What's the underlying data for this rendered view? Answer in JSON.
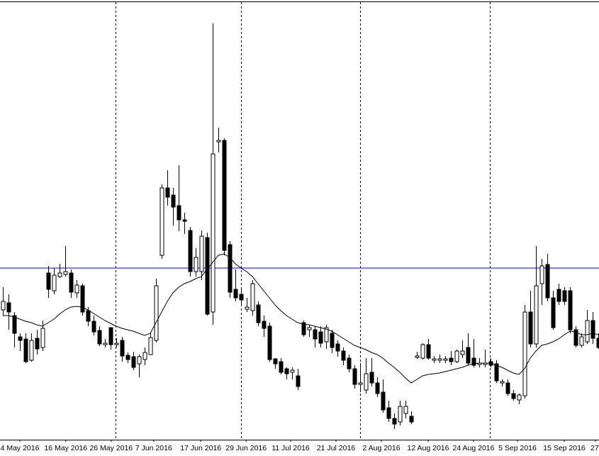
{
  "chart_data": {
    "type": "candlestick",
    "open": [
      183,
      193,
      175,
      145,
      142,
      112,
      143,
      130,
      235,
      210,
      230,
      233,
      235,
      207,
      217,
      182,
      167,
      154,
      134,
      158,
      134,
      140,
      119,
      117,
      107,
      113,
      120,
      140,
      260,
      355,
      345,
      330,
      310,
      295,
      237,
      237,
      285,
      180,
      420,
      422,
      275,
      212,
      205,
      184,
      182,
      190,
      167,
      160,
      114,
      110,
      100,
      95,
      90,
      165,
      155,
      155,
      152,
      138,
      150,
      135,
      125,
      115,
      100,
      78,
      70,
      95,
      80,
      67,
      45,
      30,
      25,
      37,
      33,
      116,
      115,
      134,
      112,
      112,
      112,
      115,
      110,
      120,
      130,
      115,
      106,
      106,
      110,
      107,
      80,
      80,
      65,
      56,
      62,
      180,
      135,
      220,
      247,
      200,
      212,
      210,
      210,
      155,
      133,
      138,
      168,
      143
    ],
    "high": [
      215,
      205,
      180,
      150,
      150,
      150,
      155,
      168,
      245,
      242,
      248,
      273,
      240,
      225,
      220,
      187,
      175,
      160,
      142,
      158,
      143,
      145,
      123,
      124,
      120,
      130,
      152,
      227,
      360,
      380,
      355,
      387,
      320,
      300,
      270,
      295,
      292,
      587,
      440,
      425,
      280,
      240,
      215,
      200,
      225,
      195,
      175,
      165,
      115,
      115,
      102,
      102,
      100,
      168,
      162,
      160,
      160,
      162,
      155,
      140,
      130,
      120,
      105,
      108,
      115,
      115,
      88,
      85,
      55,
      37,
      55,
      55,
      40,
      124,
      136,
      142,
      118,
      120,
      118,
      125,
      127,
      140,
      150,
      142,
      115,
      127,
      115,
      112,
      85,
      85,
      70,
      65,
      190,
      210,
      273,
      255,
      262,
      210,
      220,
      215,
      215,
      160,
      150,
      183,
      180,
      150
    ],
    "low": [
      175,
      155,
      130,
      125,
      108,
      110,
      120,
      125,
      200,
      205,
      228,
      230,
      200,
      200,
      175,
      160,
      147,
      132,
      130,
      127,
      130,
      110,
      108,
      98,
      88,
      105,
      120,
      137,
      255,
      330,
      302,
      294,
      290,
      230,
      230,
      225,
      175,
      162,
      405,
      260,
      200,
      195,
      190,
      180,
      175,
      160,
      145,
      110,
      100,
      92,
      85,
      85,
      70,
      145,
      145,
      130,
      130,
      128,
      122,
      117,
      105,
      95,
      72,
      67,
      65,
      75,
      60,
      38,
      25,
      15,
      20,
      30,
      22,
      114,
      113,
      113,
      108,
      108,
      108,
      105,
      108,
      115,
      105,
      102,
      102,
      102,
      102,
      80,
      75,
      62,
      55,
      50,
      58,
      130,
      130,
      190,
      195,
      155,
      190,
      190,
      150,
      130,
      130,
      135,
      135,
      128
    ],
    "close": [
      195,
      180,
      150,
      140,
      110,
      140,
      128,
      157,
      212,
      232,
      235,
      237,
      208,
      218,
      180,
      167,
      152,
      135,
      136,
      134,
      136,
      118,
      113,
      102,
      117,
      123,
      144,
      217,
      355,
      342,
      328,
      310,
      308,
      237,
      257,
      287,
      177,
      403,
      422,
      267,
      208,
      200,
      197,
      187,
      220,
      165,
      157,
      113,
      107,
      95,
      93,
      98,
      75,
      148,
      158,
      142,
      136,
      158,
      130,
      125,
      112,
      100,
      78,
      80,
      93,
      80,
      65,
      42,
      30,
      22,
      47,
      47,
      25,
      118,
      134,
      115,
      114,
      114,
      114,
      110,
      125,
      125,
      108,
      105,
      108,
      108,
      105,
      83,
      82,
      65,
      58,
      63,
      180,
      135,
      217,
      245,
      200,
      158,
      195,
      195,
      155,
      133,
      145,
      168,
      143,
      130
    ],
    "ma": [
      175,
      175,
      173,
      170,
      167,
      165,
      162,
      160,
      165,
      170,
      177,
      183,
      187,
      188,
      187,
      183,
      178,
      173,
      168,
      164,
      160,
      157,
      155,
      153,
      150,
      147,
      150,
      165,
      180,
      195,
      207,
      215,
      220,
      223,
      227,
      230,
      240,
      250,
      260,
      262,
      257,
      248,
      242,
      237,
      230,
      220,
      210,
      200,
      190,
      182,
      175,
      170,
      165,
      163,
      162,
      160,
      158,
      156,
      153,
      148,
      143,
      138,
      133,
      130,
      127,
      123,
      120,
      115,
      108,
      102,
      95,
      87,
      80,
      85,
      90,
      92,
      93,
      94,
      96,
      98,
      100,
      102,
      105,
      107,
      108,
      108,
      108,
      105,
      102,
      98,
      94,
      92,
      100,
      115,
      125,
      133,
      135,
      138,
      142,
      148,
      153,
      152,
      148,
      148,
      150,
      148
    ],
    "up_color": "#ffffff",
    "down_color": "#000000",
    "ma_color": "#000000",
    "hline": 242,
    "hline_color": "#0000cc",
    "ylim": [
      0,
      618
    ],
    "xlim": [
      -0.5,
      105.125
    ],
    "xticks": [
      {
        "value": 3,
        "label": "4 May 2016"
      },
      {
        "value": 11.1,
        "label": "16 May 2016"
      },
      {
        "value": 19.1,
        "label": "26 May 2016"
      },
      {
        "value": 26.6,
        "label": "7 Jun 2016"
      },
      {
        "value": 34.9,
        "label": "17 Jun 2016"
      },
      {
        "value": 42.9,
        "label": "29 Jun 2016"
      },
      {
        "value": 50.75,
        "label": "11 Jul 2016"
      },
      {
        "value": 58.75,
        "label": "21 Jul 2016"
      },
      {
        "value": 66.75,
        "label": "2 Aug 2016"
      },
      {
        "value": 75,
        "label": "12 Aug 2016"
      },
      {
        "value": 83,
        "label": "24 Aug 2016"
      },
      {
        "value": 90.75,
        "label": "5 Sep 2016"
      },
      {
        "value": 99,
        "label": "15 Sep 2016"
      },
      {
        "value": 104.5,
        "label": "27"
      }
    ]
  }
}
